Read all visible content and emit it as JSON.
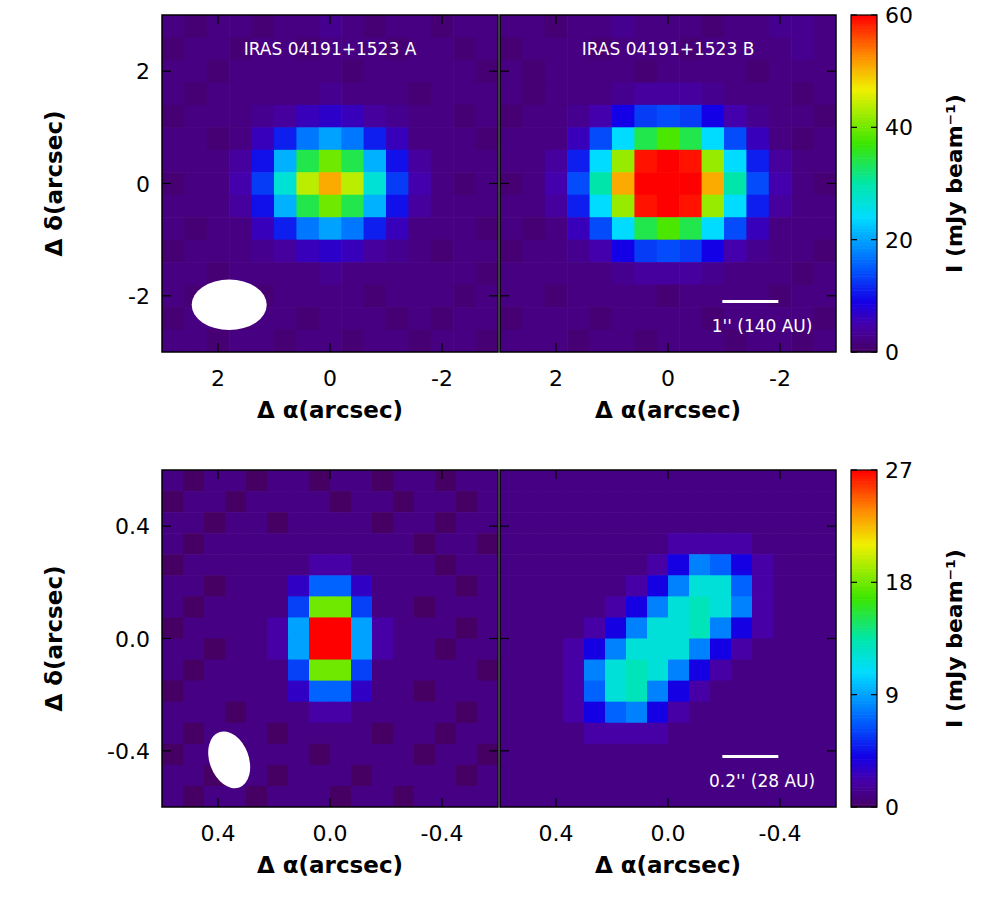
{
  "chart_data": [
    {
      "type": "heatmap",
      "title": "IRAS 04191+1523 A",
      "x_label": "Δ α(arcsec)",
      "y_label": "Δ δ(arcsec)",
      "xlim": [
        3,
        -3
      ],
      "ylim": [
        -3,
        3
      ],
      "xticks": [
        2,
        0,
        -2
      ],
      "yticks": [
        -2,
        0,
        2
      ],
      "beam": {
        "major": 1.34,
        "minor": 0.9,
        "pa": 90
      },
      "cells": [
        [
          2,
          1,
          2,
          2,
          1,
          2,
          2,
          3,
          2,
          1,
          2,
          2,
          1,
          2,
          2
        ],
        [
          1,
          2,
          2,
          1,
          2,
          2,
          1,
          2,
          2,
          2,
          1,
          2,
          2,
          1,
          2
        ],
        [
          2,
          2,
          1,
          2,
          2,
          2,
          2,
          2,
          1,
          2,
          2,
          2,
          2,
          2,
          1
        ],
        [
          2,
          1,
          2,
          2,
          2,
          2,
          2,
          3,
          2,
          2,
          2,
          1,
          2,
          2,
          2
        ],
        [
          1,
          2,
          2,
          2,
          3,
          4,
          6,
          7,
          6,
          4,
          3,
          2,
          2,
          1,
          2
        ],
        [
          2,
          2,
          1,
          2,
          6,
          11,
          17,
          20,
          17,
          11,
          6,
          2,
          2,
          2,
          1
        ],
        [
          2,
          2,
          2,
          4,
          10,
          21,
          34,
          40,
          34,
          21,
          10,
          4,
          2,
          2,
          2
        ],
        [
          1,
          2,
          2,
          5,
          13,
          27,
          44,
          51,
          44,
          27,
          13,
          5,
          2,
          1,
          2
        ],
        [
          2,
          2,
          2,
          4,
          10,
          21,
          34,
          40,
          34,
          21,
          10,
          4,
          2,
          2,
          2
        ],
        [
          2,
          1,
          2,
          2,
          6,
          11,
          17,
          20,
          17,
          11,
          6,
          2,
          2,
          2,
          1
        ],
        [
          1,
          2,
          2,
          2,
          3,
          4,
          6,
          7,
          6,
          4,
          3,
          2,
          1,
          2,
          2
        ],
        [
          2,
          2,
          1,
          2,
          2,
          2,
          2,
          3,
          2,
          2,
          2,
          2,
          2,
          2,
          1
        ],
        [
          2,
          1,
          2,
          2,
          1,
          2,
          2,
          2,
          2,
          1,
          2,
          2,
          2,
          1,
          2
        ],
        [
          1,
          2,
          2,
          1,
          2,
          2,
          1,
          2,
          2,
          2,
          1,
          2,
          1,
          2,
          2
        ],
        [
          2,
          2,
          1,
          2,
          2,
          1,
          2,
          2,
          1,
          2,
          2,
          1,
          2,
          2,
          1
        ]
      ]
    },
    {
      "type": "heatmap",
      "title": "IRAS 04191+1523 B",
      "x_label": "Δ α(arcsec)",
      "xlim": [
        3,
        -3
      ],
      "ylim": [
        -3,
        3
      ],
      "xticks": [
        2,
        0,
        -2
      ],
      "yticks": [
        -2,
        0,
        2
      ],
      "tick_labels": "x",
      "scale_bar": {
        "length": 1,
        "label": "1'' (140 AU)"
      },
      "colorbar": {
        "range": [
          0,
          60
        ],
        "ticks": [
          0,
          20,
          40,
          60
        ],
        "label": "I (mJy beam⁻¹)"
      },
      "cells": [
        [
          2,
          2,
          1,
          2,
          2,
          3,
          2,
          2,
          2,
          1,
          2,
          2,
          3,
          3,
          2
        ],
        [
          1,
          2,
          2,
          2,
          1,
          2,
          2,
          2,
          1,
          2,
          2,
          2,
          2,
          3,
          2
        ],
        [
          2,
          1,
          2,
          2,
          2,
          2,
          1,
          2,
          2,
          2,
          2,
          1,
          2,
          2,
          2
        ],
        [
          2,
          1,
          2,
          2,
          2,
          3,
          4,
          4,
          4,
          3,
          2,
          2,
          2,
          1,
          2
        ],
        [
          1,
          2,
          2,
          3,
          5,
          9,
          13,
          14,
          13,
          9,
          5,
          3,
          2,
          2,
          1
        ],
        [
          2,
          2,
          2,
          6,
          14,
          24,
          34,
          38,
          34,
          24,
          14,
          6,
          2,
          1,
          2
        ],
        [
          2,
          2,
          4,
          11,
          24,
          42,
          59,
          66,
          59,
          42,
          24,
          11,
          4,
          2,
          2
        ],
        [
          1,
          2,
          5,
          14,
          30,
          51,
          72,
          80,
          72,
          51,
          30,
          14,
          5,
          2,
          1
        ],
        [
          2,
          2,
          4,
          11,
          24,
          42,
          59,
          66,
          59,
          42,
          24,
          11,
          4,
          2,
          2
        ],
        [
          2,
          1,
          2,
          6,
          14,
          24,
          34,
          38,
          34,
          24,
          14,
          6,
          2,
          2,
          2
        ],
        [
          1,
          2,
          2,
          3,
          5,
          9,
          13,
          14,
          13,
          9,
          5,
          3,
          2,
          2,
          1
        ],
        [
          2,
          2,
          2,
          2,
          2,
          3,
          4,
          4,
          4,
          3,
          2,
          2,
          2,
          1,
          2
        ],
        [
          2,
          2,
          1,
          2,
          2,
          2,
          2,
          1,
          2,
          2,
          2,
          2,
          1,
          2,
          2
        ],
        [
          1,
          2,
          2,
          2,
          1,
          2,
          2,
          2,
          2,
          1,
          2,
          2,
          2,
          2,
          1
        ],
        [
          2,
          2,
          2,
          1,
          2,
          2,
          1,
          2,
          2,
          2,
          1,
          2,
          2,
          1,
          2
        ]
      ]
    },
    {
      "type": "heatmap",
      "x_label": "Δ α(arcsec)",
      "y_label": "Δ δ(arcsec)",
      "xlim": [
        0.6,
        -0.6
      ],
      "ylim": [
        -0.6,
        0.6
      ],
      "xticks": [
        0.4,
        {
          "value": 0,
          "label": "0.0"
        },
        -0.4
      ],
      "yticks": [
        -0.4,
        {
          "value": 0,
          "label": "0.0"
        },
        0.4
      ],
      "beam": {
        "major": 0.21,
        "minor": 0.14,
        "pa": 20
      },
      "cells": [
        [
          1,
          0,
          1,
          1,
          0,
          1,
          1,
          0,
          1,
          1,
          0,
          1,
          1,
          0,
          1,
          1
        ],
        [
          0,
          1,
          1,
          0,
          1,
          1,
          1,
          1,
          0,
          1,
          1,
          0,
          1,
          1,
          0,
          1
        ],
        [
          1,
          1,
          0,
          1,
          1,
          0,
          1,
          1,
          1,
          1,
          0,
          1,
          1,
          0,
          1,
          1
        ],
        [
          1,
          0,
          1,
          1,
          1,
          1,
          1,
          1,
          1,
          1,
          1,
          1,
          0,
          1,
          1,
          0
        ],
        [
          0,
          1,
          1,
          1,
          1,
          1,
          1,
          2,
          2,
          1,
          1,
          1,
          1,
          0,
          1,
          1
        ],
        [
          1,
          1,
          0,
          1,
          1,
          1,
          3,
          7,
          7,
          3,
          1,
          1,
          1,
          1,
          0,
          1
        ],
        [
          1,
          0,
          1,
          1,
          1,
          1,
          6,
          18,
          18,
          6,
          1,
          1,
          0,
          1,
          1,
          1
        ],
        [
          0,
          1,
          1,
          1,
          1,
          2,
          9,
          29,
          29,
          9,
          2,
          1,
          1,
          1,
          0,
          1
        ],
        [
          1,
          1,
          0,
          1,
          1,
          2,
          9,
          29,
          29,
          9,
          2,
          1,
          1,
          0,
          1,
          1
        ],
        [
          1,
          0,
          1,
          1,
          1,
          1,
          6,
          18,
          18,
          6,
          1,
          1,
          1,
          1,
          1,
          0
        ],
        [
          0,
          1,
          1,
          1,
          1,
          1,
          3,
          7,
          7,
          3,
          1,
          1,
          0,
          1,
          1,
          1
        ],
        [
          1,
          1,
          1,
          0,
          1,
          1,
          1,
          2,
          2,
          1,
          1,
          1,
          1,
          1,
          0,
          1
        ],
        [
          1,
          0,
          1,
          1,
          1,
          0,
          1,
          1,
          1,
          1,
          0,
          1,
          1,
          0,
          1,
          1
        ],
        [
          0,
          1,
          1,
          0,
          1,
          1,
          1,
          0,
          1,
          1,
          1,
          1,
          0,
          1,
          1,
          0
        ],
        [
          1,
          1,
          0,
          1,
          1,
          0,
          1,
          1,
          1,
          0,
          1,
          1,
          1,
          1,
          0,
          1
        ],
        [
          1,
          0,
          1,
          1,
          0,
          1,
          1,
          1,
          0,
          1,
          1,
          0,
          1,
          1,
          1,
          1
        ]
      ]
    },
    {
      "type": "heatmap",
      "x_label": "Δ α(arcsec)",
      "xlim": [
        0.6,
        -0.6
      ],
      "ylim": [
        -0.6,
        0.6
      ],
      "xticks": [
        0.4,
        {
          "value": 0,
          "label": "0.0"
        },
        -0.4
      ],
      "yticks": [
        -0.4,
        {
          "value": 0,
          "label": "0.0"
        },
        0.4
      ],
      "tick_labels": "x",
      "scale_bar": {
        "length": 0.2,
        "label": "0.2'' (28 AU)"
      },
      "colorbar": {
        "range": [
          0,
          27
        ],
        "ticks": [
          0,
          9,
          18,
          27
        ],
        "label": "I (mJy beam⁻¹)"
      },
      "cells": [
        [
          1,
          1,
          1,
          1,
          1,
          1,
          1,
          1,
          1,
          1,
          1,
          1,
          1,
          1,
          1,
          1
        ],
        [
          1,
          1,
          1,
          1,
          1,
          1,
          1,
          1,
          1,
          1,
          1,
          1,
          1,
          1,
          1,
          1
        ],
        [
          1,
          1,
          1,
          1,
          1,
          1,
          1,
          1,
          1,
          1,
          1,
          1,
          1,
          1,
          1,
          1
        ],
        [
          1,
          1,
          1,
          1,
          1,
          1,
          1,
          1,
          2,
          2,
          2,
          2,
          1,
          1,
          1,
          1
        ],
        [
          1,
          1,
          1,
          1,
          1,
          1,
          1,
          2,
          4,
          8,
          7,
          4,
          2,
          1,
          1,
          1
        ],
        [
          1,
          1,
          1,
          1,
          1,
          1,
          2,
          4,
          8,
          12,
          12,
          7,
          2,
          1,
          1,
          1
        ],
        [
          1,
          1,
          1,
          1,
          1,
          2,
          4,
          8,
          12,
          13,
          12,
          8,
          2,
          1,
          1,
          1
        ],
        [
          1,
          1,
          1,
          1,
          2,
          4,
          8,
          12,
          12,
          13,
          8,
          4,
          2,
          1,
          1,
          1
        ],
        [
          1,
          1,
          1,
          2,
          4,
          8,
          12,
          12,
          12,
          8,
          4,
          2,
          1,
          1,
          1,
          1
        ],
        [
          1,
          1,
          1,
          2,
          8,
          12,
          13,
          12,
          8,
          4,
          2,
          1,
          1,
          1,
          1,
          1
        ],
        [
          1,
          1,
          1,
          2,
          7,
          12,
          13,
          8,
          4,
          2,
          1,
          1,
          1,
          1,
          1,
          1
        ],
        [
          1,
          1,
          1,
          2,
          4,
          7,
          8,
          4,
          2,
          1,
          1,
          1,
          1,
          1,
          1,
          1
        ],
        [
          1,
          1,
          1,
          1,
          2,
          2,
          2,
          2,
          1,
          1,
          1,
          1,
          1,
          1,
          1,
          1
        ],
        [
          1,
          1,
          1,
          1,
          1,
          1,
          1,
          1,
          1,
          1,
          1,
          1,
          1,
          1,
          1,
          1
        ],
        [
          1,
          1,
          1,
          1,
          1,
          1,
          1,
          1,
          1,
          1,
          1,
          1,
          1,
          1,
          1,
          1
        ],
        [
          1,
          1,
          1,
          1,
          1,
          1,
          1,
          1,
          1,
          1,
          1,
          1,
          1,
          1,
          1,
          1
        ]
      ]
    }
  ]
}
